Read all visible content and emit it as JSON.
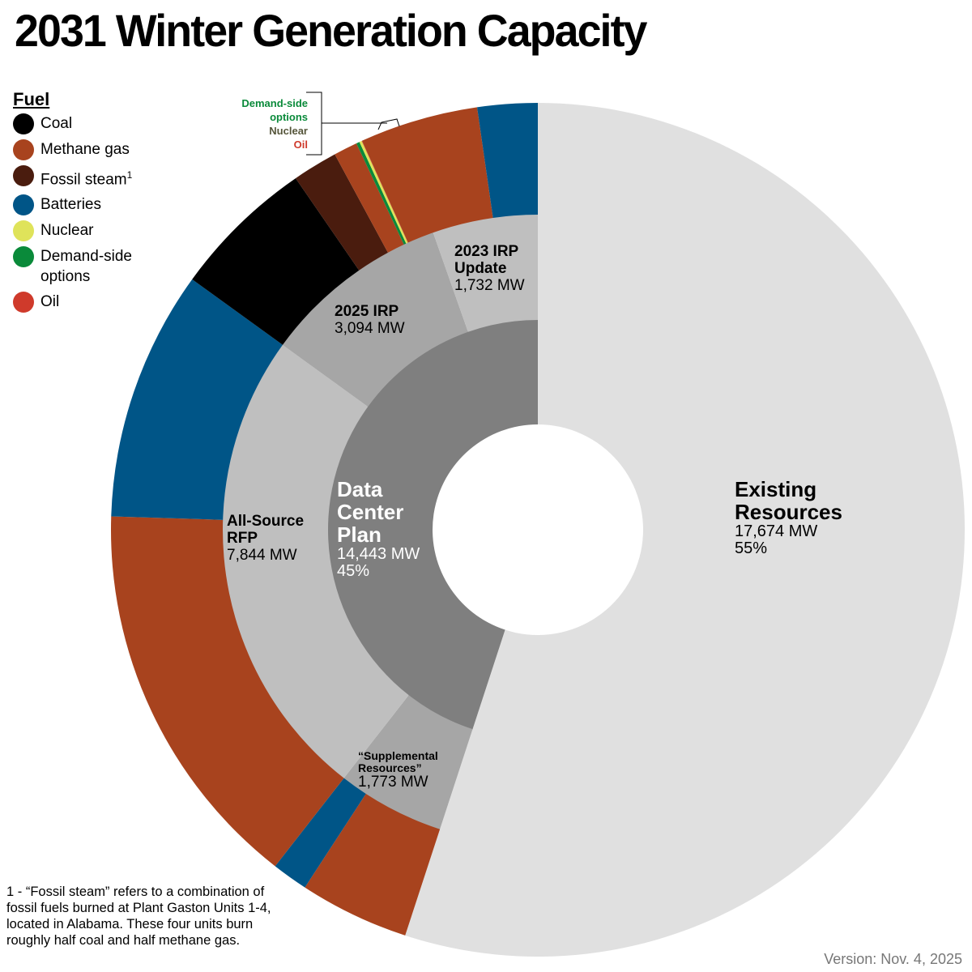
{
  "title": "2031 Winter Generation Capacity",
  "legend": {
    "title": "Fuel",
    "items": [
      {
        "label": "Coal",
        "color": "#000000"
      },
      {
        "label": "Methane gas",
        "color": "#a8431e"
      },
      {
        "label": "Fossil steam",
        "sup": "1",
        "color": "#4a1c0e"
      },
      {
        "label": "Batteries",
        "color": "#005587"
      },
      {
        "label": "Nuclear",
        "color": "#dfe35a"
      },
      {
        "label": "Demand-side options",
        "color": "#0a8a3a"
      },
      {
        "label": "Oil",
        "color": "#cf3a2b"
      }
    ]
  },
  "callout": {
    "demand_side": "Demand-side options",
    "nuclear": "Nuclear",
    "oil": "Oil",
    "colors": {
      "demand_side": "#0a8a3a",
      "nuclear": "#55553a",
      "oil": "#cf3a2b"
    }
  },
  "labels": {
    "existing": {
      "name": "Existing Resources",
      "mw": "17,674 MW",
      "pct": "55%"
    },
    "dcp": {
      "name": "Data Center Plan",
      "mw": "14,443 MW",
      "pct": "45%"
    },
    "irp2023": {
      "name": "2023 IRP Update",
      "mw": "1,732 MW"
    },
    "irp2025": {
      "name": "2025 IRP",
      "mw": "3,094 MW"
    },
    "rfp": {
      "name": "All-Source RFP",
      "mw": "7,844 MW"
    },
    "supplemental": {
      "name": "“Supplemental Resources”",
      "mw": "1,773 MW"
    }
  },
  "footnote": "1 - “Fossil steam” refers to a combination of fossil fuels burned at Plant Gaston Units 1-4, located in Alabama. These four units burn roughly half coal and half methane gas.",
  "version": "Version: Nov. 4, 2025",
  "chart_data": {
    "type": "pie",
    "title": "2031 Winter Generation Capacity",
    "subtype": "sunburst / nested donut",
    "units": "MW",
    "inner_ring": [
      {
        "name": "Existing Resources",
        "value": 17674,
        "pct": 55,
        "color": "#e0e0e0"
      },
      {
        "name": "Data Center Plan",
        "value": 14443,
        "pct": 45,
        "color": "#7f7f7f"
      }
    ],
    "middle_ring": [
      {
        "parent": "Data Center Plan",
        "name": "Supplemental Resources",
        "value": 1773,
        "color": "#a6a6a6"
      },
      {
        "parent": "Data Center Plan",
        "name": "All-Source RFP",
        "value": 7844,
        "color": "#bfbfbf"
      },
      {
        "parent": "Data Center Plan",
        "name": "2025 IRP",
        "value": 3094,
        "color": "#a6a6a6"
      },
      {
        "parent": "Data Center Plan",
        "name": "2023 IRP Update",
        "value": 1732,
        "color": "#bfbfbf"
      }
    ],
    "outer_ring_fuel_estimated_mw": [
      {
        "parent": "Supplemental Resources",
        "fuel": "Methane gas",
        "value": 1335
      },
      {
        "parent": "Supplemental Resources",
        "fuel": "Batteries",
        "value": 438
      },
      {
        "parent": "All-Source RFP",
        "fuel": "Methane gas",
        "value": 4800
      },
      {
        "parent": "All-Source RFP",
        "fuel": "Batteries",
        "value": 3044
      },
      {
        "parent": "2025 IRP",
        "fuel": "Coal",
        "value": 1740
      },
      {
        "parent": "2025 IRP",
        "fuel": "Fossil steam",
        "value": 550
      },
      {
        "parent": "2025 IRP",
        "fuel": "Methane gas",
        "value": 290
      },
      {
        "parent": "2025 IRP",
        "fuel": "Demand-side options",
        "value": 40
      },
      {
        "parent": "2025 IRP",
        "fuel": "Nuclear",
        "value": 30
      },
      {
        "parent": "2025 IRP",
        "fuel": "Oil",
        "value": 4
      },
      {
        "parent": "2025 IRP / 2023 IRP Update",
        "fuel": "Methane gas",
        "value": 1440
      },
      {
        "parent": "2023 IRP Update",
        "fuel": "Batteries",
        "value": 730
      }
    ],
    "legend_position": "top-left"
  }
}
